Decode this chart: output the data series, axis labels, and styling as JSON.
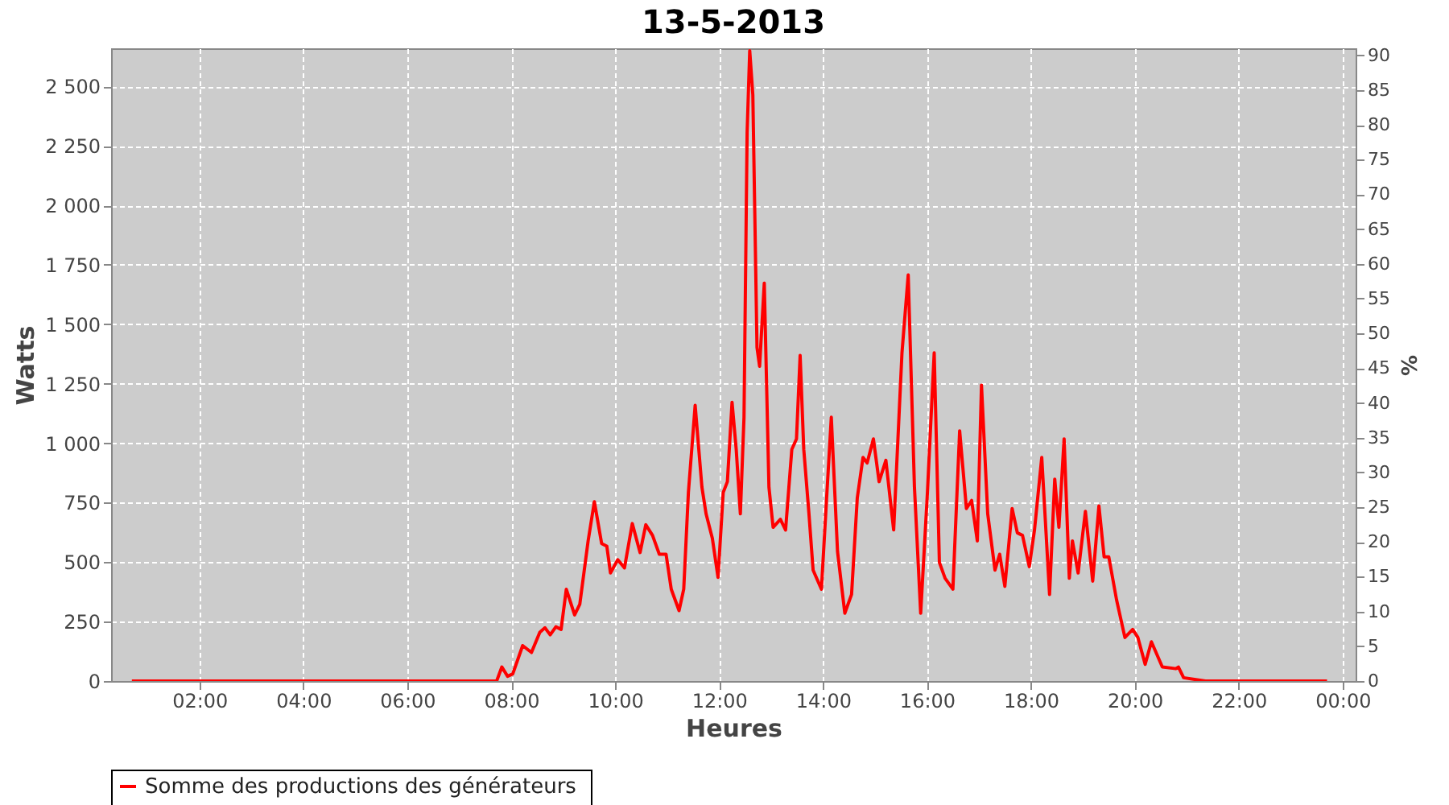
{
  "chart_data": {
    "type": "line",
    "title": "13-5-2013",
    "xlabel": "Heures",
    "ylabel": "Watts",
    "y2label": "%",
    "xlim": [
      0.3,
      24.25
    ],
    "xticks": [
      {
        "value": 2,
        "label": "02:00"
      },
      {
        "value": 4,
        "label": "04:00"
      },
      {
        "value": 6,
        "label": "06:00"
      },
      {
        "value": 8,
        "label": "08:00"
      },
      {
        "value": 10,
        "label": "10:00"
      },
      {
        "value": 12,
        "label": "12:00"
      },
      {
        "value": 14,
        "label": "14:00"
      },
      {
        "value": 16,
        "label": "16:00"
      },
      {
        "value": 18,
        "label": "18:00"
      },
      {
        "value": 20,
        "label": "20:00"
      },
      {
        "value": 22,
        "label": "22:00"
      },
      {
        "value": 24,
        "label": "00:00"
      }
    ],
    "ylim": [
      0,
      2660
    ],
    "yticks": [
      0,
      250,
      500,
      750,
      {
        "value": 1000,
        "label": "1 000"
      },
      {
        "value": 1250,
        "label": "1 250"
      },
      {
        "value": 1500,
        "label": "1 500"
      },
      {
        "value": 1750,
        "label": "1 750"
      },
      {
        "value": 2000,
        "label": "2 000"
      },
      {
        "value": 2250,
        "label": "2 250"
      },
      {
        "value": 2500,
        "label": "2 500"
      }
    ],
    "y2lim": [
      0,
      91
    ],
    "y2ticks": [
      0,
      5,
      10,
      15,
      20,
      25,
      30,
      35,
      40,
      45,
      50,
      55,
      60,
      65,
      70,
      75,
      80,
      85,
      90
    ],
    "grid": true,
    "legend": "bottom",
    "line_style": "solid",
    "series": [
      {
        "name": "Somme des productions des  générateurs",
        "color": "#ff0000",
        "x": [
          0.7,
          2,
          4,
          6,
          7.72,
          7.82,
          7.93,
          8.03,
          8.22,
          8.39,
          8.55,
          8.65,
          8.75,
          8.86,
          8.96,
          9.06,
          9.22,
          9.32,
          9.48,
          9.6,
          9.74,
          9.84,
          9.91,
          10.05,
          10.18,
          10.33,
          10.48,
          10.59,
          10.72,
          10.85,
          10.98,
          11.08,
          11.23,
          11.32,
          11.41,
          11.54,
          11.67,
          11.75,
          11.87,
          11.98,
          12.08,
          12.16,
          12.25,
          12.33,
          12.41,
          12.48,
          12.54,
          12.59,
          12.65,
          12.73,
          12.78,
          12.87,
          12.96,
          13.04,
          13.18,
          13.28,
          13.4,
          13.49,
          13.56,
          13.63,
          13.73,
          13.81,
          13.97,
          14.07,
          14.16,
          14.28,
          14.42,
          14.55,
          14.66,
          14.77,
          14.85,
          14.97,
          15.08,
          15.21,
          15.36,
          15.52,
          15.64,
          15.76,
          15.88,
          16.01,
          16.14,
          16.24,
          16.35,
          16.5,
          16.63,
          16.76,
          16.86,
          16.97,
          17.05,
          17.17,
          17.31,
          17.4,
          17.5,
          17.64,
          17.74,
          17.84,
          17.97,
          18.07,
          18.21,
          18.36,
          18.46,
          18.54,
          18.64,
          18.74,
          18.8,
          18.91,
          19.05,
          19.19,
          19.31,
          19.41,
          19.5,
          19.65,
          19.81,
          19.96,
          20.06,
          20.2,
          20.32,
          20.53,
          20.79,
          20.84,
          20.94,
          21.15,
          21.36,
          22,
          23,
          23.7
        ],
        "values": [
          0,
          0,
          0,
          0,
          0,
          59,
          20,
          30,
          149,
          120,
          205,
          224,
          194,
          228,
          217,
          386,
          278,
          323,
          589,
          754,
          578,
          567,
          454,
          510,
          476,
          662,
          540,
          657,
          612,
          533,
          533,
          386,
          296,
          386,
          793,
          1159,
          815,
          703,
          601,
          436,
          793,
          838,
          1172,
          974,
          703,
          1109,
          2306,
          2650,
          2464,
          1402,
          1323,
          1673,
          815,
          646,
          680,
          635,
          974,
          1018,
          1369,
          974,
          703,
          466,
          386,
          770,
          1109,
          544,
          285,
          364,
          770,
          940,
          917,
          1018,
          838,
          928,
          635,
          1380,
          1707,
          815,
          285,
          793,
          1380,
          499,
          432,
          386,
          1052,
          725,
          759,
          589,
          1244,
          703,
          466,
          533,
          398,
          725,
          623,
          612,
          481,
          635,
          940,
          364,
          849,
          646,
          1018,
          432,
          589,
          454,
          713,
          420,
          736,
          522,
          522,
          341,
          183,
          217,
          183,
          70,
          165,
          59,
          52,
          59,
          14,
          7,
          0,
          0,
          0,
          0
        ]
      }
    ]
  }
}
